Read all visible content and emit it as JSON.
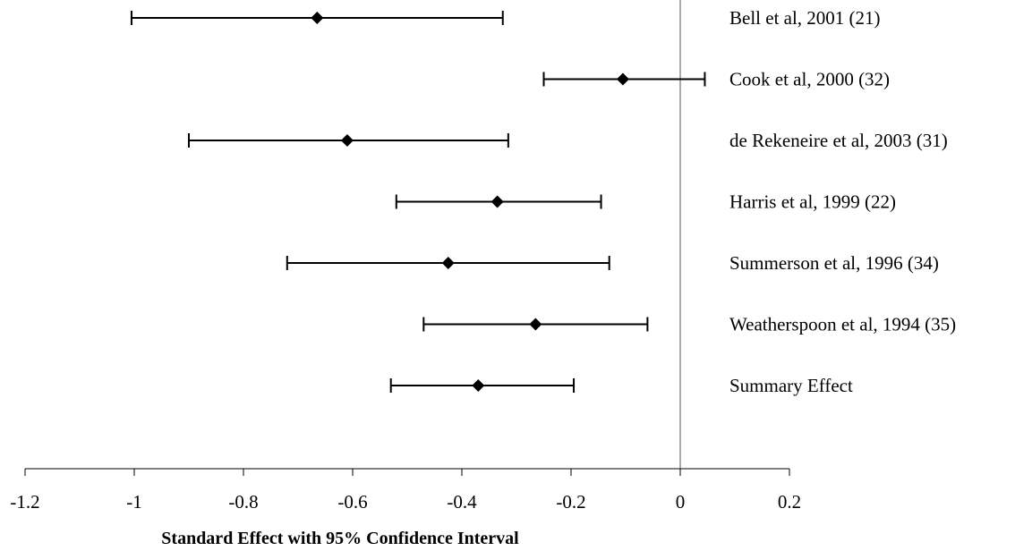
{
  "chart_data": {
    "type": "forest",
    "xlabel": "Standard Effect with 95% Confidence Interval",
    "xlim": [
      -1.2,
      0.2
    ],
    "xticks": [
      -1.2,
      -1,
      -0.8,
      -0.6,
      -0.4,
      -0.2,
      0,
      0.2
    ],
    "xtick_labels": [
      "-1.2",
      "-1",
      "-0.8",
      "-0.6",
      "-0.4",
      "-0.2",
      "0",
      "0.2"
    ],
    "reference_line": 0,
    "studies": [
      {
        "label": "Bell et al, 2001 (21)",
        "estimate": -0.665,
        "lower": -1.005,
        "upper": -0.325
      },
      {
        "label": "Cook et al, 2000 (32)",
        "estimate": -0.105,
        "lower": -0.25,
        "upper": 0.045
      },
      {
        "label": "de Rekeneire et al, 2003 (31)",
        "estimate": -0.61,
        "lower": -0.9,
        "upper": -0.315
      },
      {
        "label": "Harris et al, 1999 (22)",
        "estimate": -0.335,
        "lower": -0.52,
        "upper": -0.145
      },
      {
        "label": "Summerson et al, 1996 (34)",
        "estimate": -0.425,
        "lower": -0.72,
        "upper": -0.13
      },
      {
        "label": "Weatherspoon et al, 1994 (35)",
        "estimate": -0.265,
        "lower": -0.47,
        "upper": -0.06
      },
      {
        "label": "Summary Effect",
        "estimate": -0.37,
        "lower": -0.53,
        "upper": -0.195
      }
    ]
  }
}
